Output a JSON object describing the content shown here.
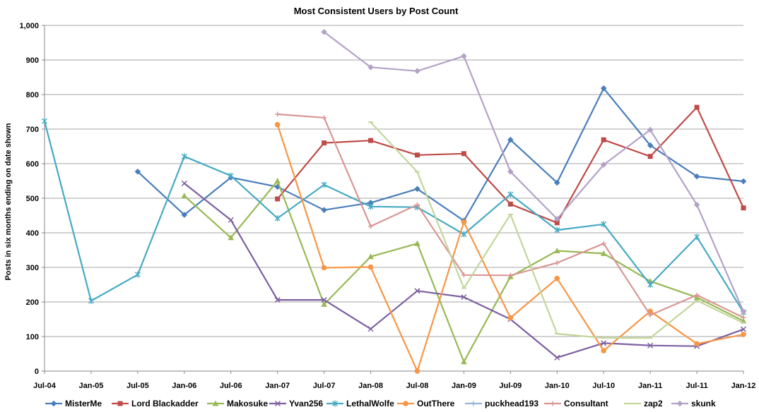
{
  "chart_data": {
    "type": "line",
    "title": "Most Consistent Users by Post Count",
    "xlabel": "",
    "ylabel": "Posts in six months ending on date shown",
    "categories": [
      "Jul-04",
      "Jan-05",
      "Jul-05",
      "Jan-06",
      "Jul-06",
      "Jan-07",
      "Jul-07",
      "Jan-08",
      "Jul-08",
      "Jan-09",
      "Jul-09",
      "Jan-10",
      "Jul-10",
      "Jan-11",
      "Jul-11",
      "Jan-12"
    ],
    "ylim": [
      0,
      1000
    ],
    "yticks": [
      "0",
      "100",
      "200",
      "300",
      "400",
      "500",
      "600",
      "700",
      "800",
      "900",
      "1,000"
    ],
    "grid": "horizontal",
    "legend_position": "bottom",
    "series": [
      {
        "name": "MisterMe",
        "color": "#4a7ebb",
        "marker": "diamond",
        "values": [
          null,
          null,
          577,
          452,
          560,
          533,
          466,
          487,
          527,
          435,
          669,
          545,
          818,
          653,
          563,
          549
        ]
      },
      {
        "name": "Lord Blackadder",
        "color": "#be4b48",
        "marker": "square",
        "values": [
          null,
          null,
          null,
          null,
          null,
          498,
          660,
          667,
          625,
          629,
          483,
          429,
          669,
          621,
          763,
          472
        ]
      },
      {
        "name": "Makosuke",
        "color": "#98b954",
        "marker": "triangle",
        "values": [
          null,
          null,
          null,
          507,
          386,
          550,
          193,
          331,
          369,
          27,
          273,
          348,
          340,
          260,
          213,
          145
        ]
      },
      {
        "name": "Yvan256",
        "color": "#7d60a0",
        "marker": "x",
        "values": [
          null,
          null,
          null,
          543,
          437,
          206,
          206,
          122,
          232,
          214,
          150,
          39,
          81,
          74,
          72,
          121
        ]
      },
      {
        "name": "LethalWolfe",
        "color": "#46aac4",
        "marker": "star",
        "values": [
          723,
          203,
          279,
          621,
          565,
          442,
          539,
          476,
          474,
          396,
          511,
          408,
          425,
          250,
          388,
          170
        ]
      },
      {
        "name": "OutThere",
        "color": "#f79646",
        "marker": "circle",
        "values": [
          null,
          null,
          null,
          null,
          null,
          713,
          299,
          301,
          0,
          431,
          154,
          268,
          59,
          173,
          79,
          106
        ]
      },
      {
        "name": "puckhead193",
        "color": "#95b3d7",
        "marker": "plus",
        "values": [
          null,
          null,
          null,
          null,
          null,
          null,
          null,
          null,
          null,
          null,
          null,
          null,
          null,
          null,
          null,
          null
        ]
      },
      {
        "name": "Consultant",
        "color": "#d99694",
        "marker": "plus",
        "values": [
          null,
          null,
          null,
          null,
          null,
          743,
          733,
          419,
          481,
          278,
          277,
          313,
          369,
          162,
          220,
          155
        ]
      },
      {
        "name": "zap2",
        "color": "#c3d69b",
        "marker": "dash",
        "values": [
          null,
          null,
          null,
          null,
          null,
          null,
          null,
          720,
          576,
          240,
          453,
          108,
          96,
          96,
          204,
          139
        ]
      },
      {
        "name": "skunk",
        "color": "#b3a2c7",
        "marker": "diamond",
        "values": [
          null,
          null,
          null,
          null,
          null,
          null,
          981,
          879,
          868,
          911,
          577,
          440,
          597,
          698,
          481,
          172
        ]
      }
    ]
  }
}
